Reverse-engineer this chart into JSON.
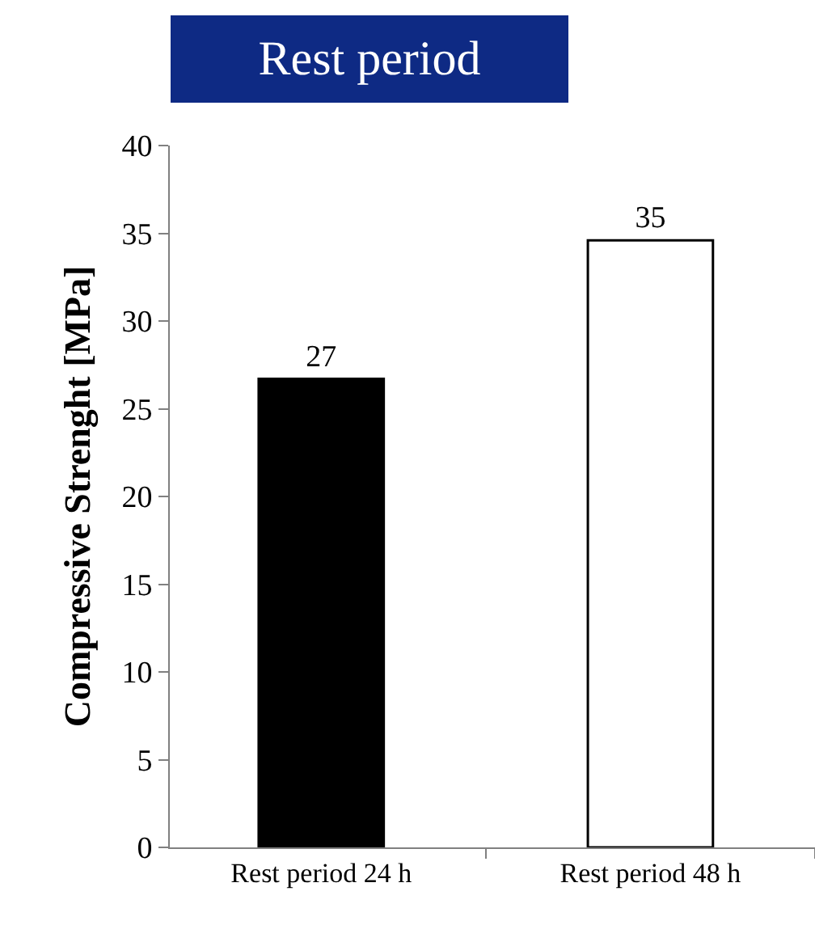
{
  "chart_data": {
    "type": "bar",
    "title": "Rest period",
    "ylabel": "Compressive Strenght [MPa]",
    "categories": [
      "Rest period 24 h",
      "Rest period 48 h"
    ],
    "values": [
      26.7,
      34.6
    ],
    "colors": [
      "#000000",
      "#ffffff"
    ],
    "value_labels": [
      "27",
      "35"
    ],
    "ylim": [
      0,
      40
    ],
    "yticks": [
      0,
      5,
      10,
      15,
      20,
      25,
      30,
      35,
      40
    ]
  }
}
